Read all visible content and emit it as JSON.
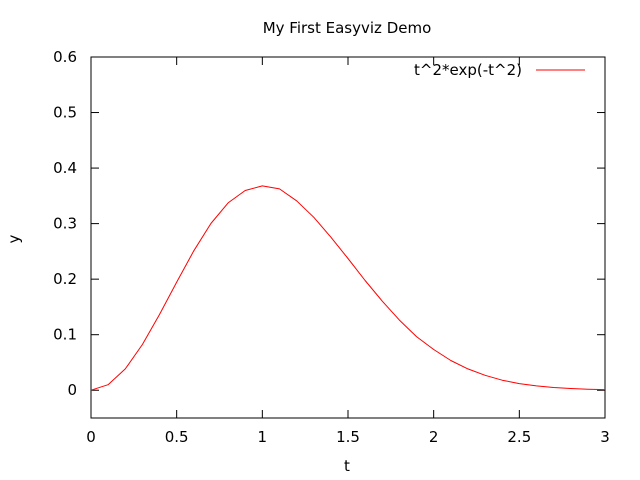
{
  "chart_data": {
    "type": "line",
    "title": "My First Easyviz Demo",
    "xlabel": "t",
    "ylabel": "y",
    "xlim": [
      0,
      3
    ],
    "ylim": [
      -0.05,
      0.6
    ],
    "xticks": [
      0,
      0.5,
      1,
      1.5,
      2,
      2.5,
      3
    ],
    "xtick_labels": [
      "0",
      "0.5",
      "1",
      "1.5",
      "2",
      "2.5",
      "3"
    ],
    "yticks": [
      0,
      0.1,
      0.2,
      0.3,
      0.4,
      0.5,
      0.6
    ],
    "ytick_labels": [
      "0",
      "0.1",
      "0.2",
      "0.3",
      "0.4",
      "0.5",
      "0.6"
    ],
    "grid": false,
    "legend_position": "top-right",
    "series": [
      {
        "name": "t^2*exp(-t^2)",
        "color": "#ff0000",
        "x": [
          0,
          0.1,
          0.2,
          0.3,
          0.4,
          0.5,
          0.6,
          0.7,
          0.8,
          0.9,
          1.0,
          1.1,
          1.2,
          1.3,
          1.4,
          1.5,
          1.6,
          1.7,
          1.8,
          1.9,
          2.0,
          2.1,
          2.2,
          2.3,
          2.4,
          2.5,
          2.6,
          2.7,
          2.8,
          2.9,
          3.0
        ],
        "y": [
          0,
          0.0099,
          0.0384,
          0.0823,
          0.1363,
          0.1947,
          0.2511,
          0.3002,
          0.3373,
          0.3596,
          0.3679,
          0.3625,
          0.3411,
          0.3116,
          0.2756,
          0.2371,
          0.1976,
          0.1603,
          0.1262,
          0.0966,
          0.0733,
          0.0535,
          0.0384,
          0.0268,
          0.0181,
          0.012,
          0.0078,
          0.005,
          0.0031,
          0.0019,
          0.0011
        ]
      }
    ]
  }
}
